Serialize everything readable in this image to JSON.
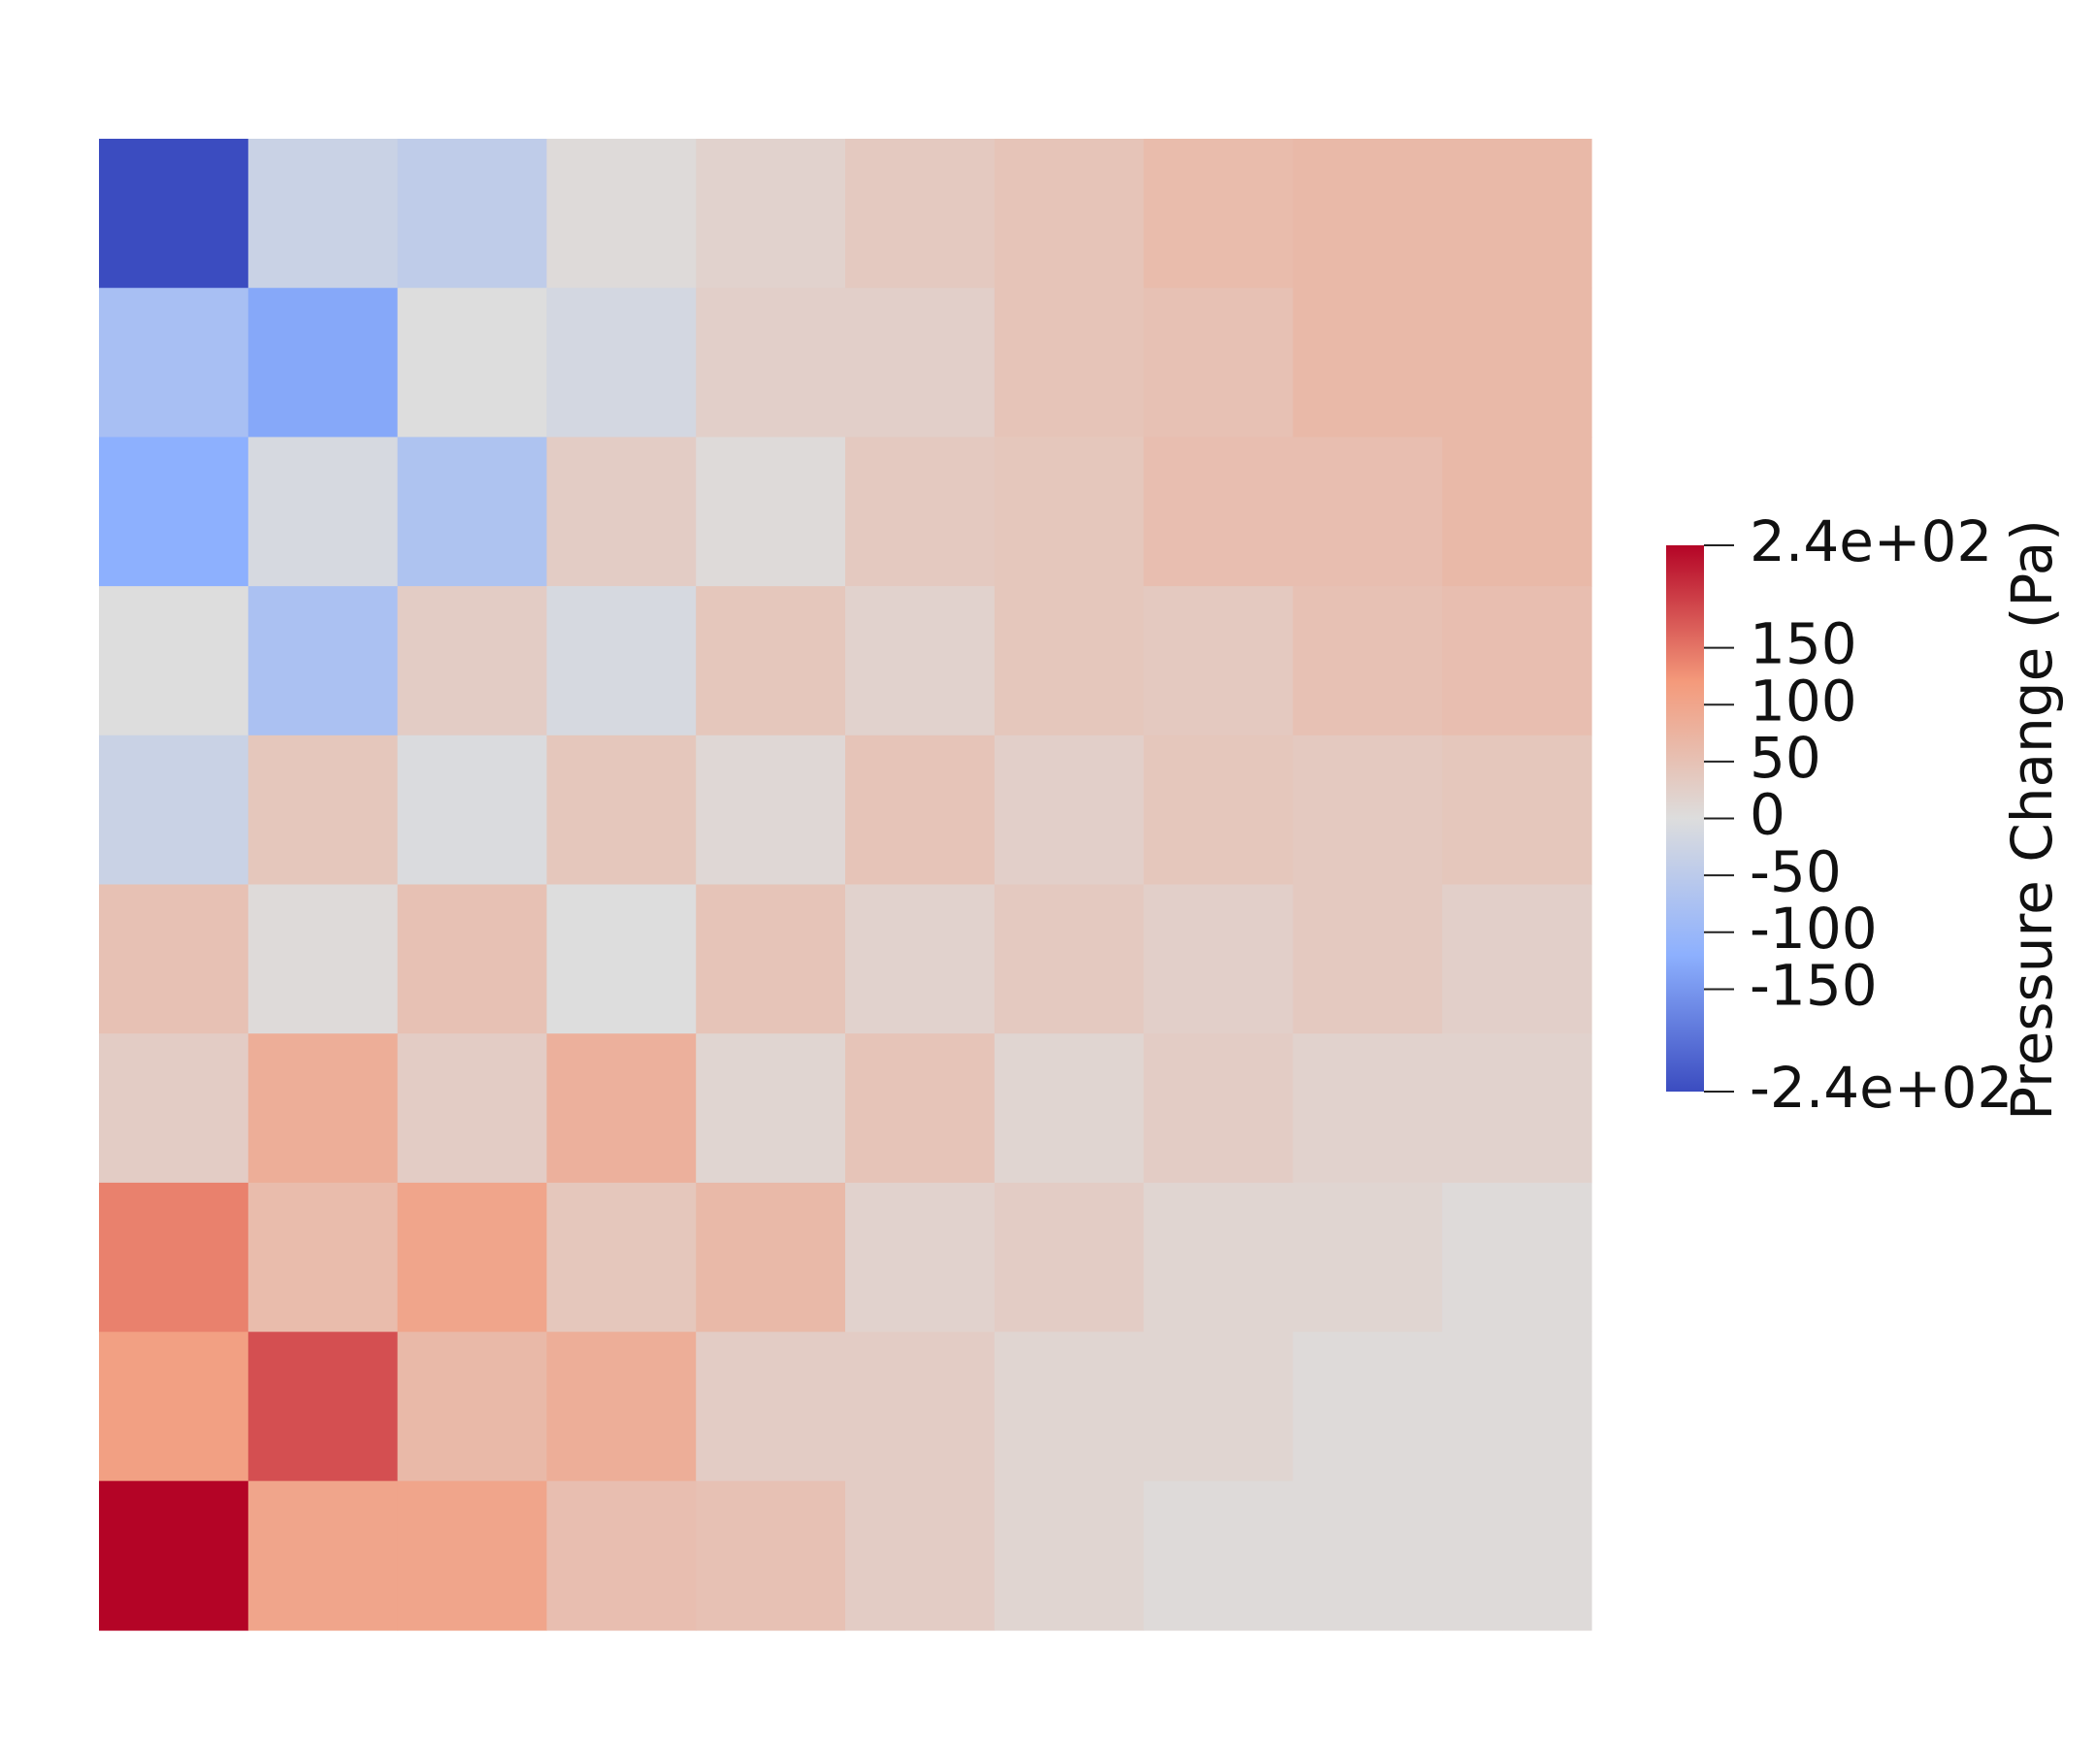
{
  "chart_data": {
    "type": "heatmap",
    "colorbar_title": "Pressure Change (Pa)",
    "colormap": "coolwarm",
    "z": [
      [
        -240,
        -30,
        -45,
        5,
        20,
        35,
        45,
        60,
        65,
        65
      ],
      [
        -80,
        -130,
        0,
        -15,
        25,
        25,
        45,
        50,
        65,
        65
      ],
      [
        -120,
        -10,
        -70,
        30,
        5,
        35,
        40,
        55,
        55,
        65
      ],
      [
        0,
        -75,
        30,
        -10,
        40,
        20,
        40,
        35,
        50,
        55
      ],
      [
        -30,
        40,
        -5,
        40,
        10,
        45,
        25,
        40,
        35,
        40
      ],
      [
        50,
        5,
        50,
        0,
        45,
        20,
        35,
        25,
        35,
        25
      ],
      [
        30,
        85,
        30,
        80,
        15,
        45,
        15,
        30,
        20,
        20
      ],
      [
        140,
        60,
        100,
        40,
        65,
        20,
        30,
        15,
        15,
        5
      ],
      [
        110,
        180,
        65,
        85,
        30,
        30,
        15,
        15,
        5,
        5
      ],
      [
        240,
        100,
        100,
        55,
        50,
        30,
        15,
        5,
        5,
        5
      ]
    ],
    "zlim": [
      -240,
      240
    ],
    "zticks": [
      {
        "value": 240,
        "label": "2.4e+02"
      },
      150,
      100,
      50,
      0,
      -50,
      -100,
      -150,
      {
        "value": -240,
        "label": "-2.4e+02"
      }
    ]
  }
}
